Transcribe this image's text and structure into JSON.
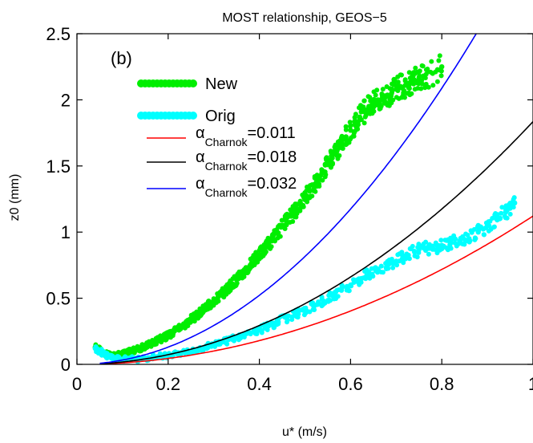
{
  "chart_data": {
    "type": "scatter",
    "title": "MOST relationship, GEOS−5",
    "panel_label": "(b)",
    "xlabel": "u* (m/s)",
    "ylabel": "z0 (mm)",
    "xlim": [
      0,
      1
    ],
    "ylim": [
      0,
      2.5
    ],
    "x_ticks": [
      0,
      0.2,
      0.4,
      0.6,
      0.8,
      1
    ],
    "x_tick_labels": [
      "0",
      "0.2",
      "0.4",
      "0.6",
      "0.8",
      "1"
    ],
    "y_ticks": [
      0,
      0.5,
      1,
      1.5,
      2,
      2.5
    ],
    "y_tick_labels": [
      "0",
      "0.5",
      "1",
      "1.5",
      "2",
      "2.5"
    ],
    "grid": false,
    "legend_position": "upper-left",
    "scatter_series": [
      {
        "name": "New",
        "color": "#00ee00",
        "x": [
          0.04,
          0.05,
          0.06,
          0.07,
          0.08,
          0.09,
          0.1,
          0.11,
          0.12,
          0.13,
          0.14,
          0.15,
          0.16,
          0.17,
          0.18,
          0.19,
          0.2,
          0.21,
          0.22,
          0.23,
          0.24,
          0.25,
          0.26,
          0.27,
          0.28,
          0.29,
          0.3,
          0.31,
          0.32,
          0.33,
          0.34,
          0.35,
          0.36,
          0.37,
          0.38,
          0.39,
          0.4,
          0.41,
          0.42,
          0.43,
          0.44,
          0.45,
          0.46,
          0.47,
          0.48,
          0.49,
          0.5,
          0.51,
          0.52,
          0.53,
          0.54,
          0.55,
          0.56,
          0.57,
          0.58,
          0.59,
          0.6,
          0.61,
          0.62,
          0.63,
          0.64,
          0.65,
          0.66,
          0.67,
          0.68,
          0.69,
          0.7,
          0.71,
          0.72,
          0.73,
          0.74,
          0.75,
          0.76,
          0.78,
          0.8
        ],
        "y": [
          0.13,
          0.11,
          0.08,
          0.07,
          0.06,
          0.07,
          0.08,
          0.09,
          0.1,
          0.11,
          0.12,
          0.14,
          0.15,
          0.17,
          0.19,
          0.2,
          0.22,
          0.24,
          0.27,
          0.29,
          0.31,
          0.34,
          0.36,
          0.39,
          0.42,
          0.45,
          0.48,
          0.51,
          0.54,
          0.57,
          0.61,
          0.64,
          0.68,
          0.71,
          0.75,
          0.79,
          0.83,
          0.87,
          0.91,
          0.95,
          0.99,
          1.04,
          1.08,
          1.12,
          1.17,
          1.22,
          1.26,
          1.31,
          1.36,
          1.41,
          1.46,
          1.51,
          1.56,
          1.61,
          1.67,
          1.72,
          1.77,
          1.82,
          1.87,
          1.91,
          1.95,
          1.98,
          2.0,
          2.02,
          2.03,
          2.05,
          2.08,
          2.1,
          2.11,
          2.13,
          2.15,
          2.17,
          2.18,
          2.2,
          2.25
        ]
      },
      {
        "name": "Orig",
        "color": "#00ffff",
        "x": [
          0.04,
          0.05,
          0.06,
          0.07,
          0.08,
          0.1,
          0.12,
          0.14,
          0.16,
          0.18,
          0.2,
          0.22,
          0.24,
          0.26,
          0.28,
          0.3,
          0.32,
          0.34,
          0.36,
          0.38,
          0.4,
          0.42,
          0.44,
          0.46,
          0.48,
          0.5,
          0.52,
          0.54,
          0.56,
          0.58,
          0.6,
          0.62,
          0.64,
          0.66,
          0.68,
          0.7,
          0.72,
          0.74,
          0.76,
          0.78,
          0.8,
          0.82,
          0.84,
          0.86,
          0.88,
          0.9,
          0.92,
          0.94,
          0.95,
          0.96
        ],
        "y": [
          0.12,
          0.1,
          0.08,
          0.06,
          0.05,
          0.04,
          0.04,
          0.04,
          0.05,
          0.06,
          0.07,
          0.08,
          0.1,
          0.11,
          0.13,
          0.15,
          0.17,
          0.19,
          0.21,
          0.24,
          0.26,
          0.29,
          0.32,
          0.35,
          0.38,
          0.41,
          0.44,
          0.48,
          0.52,
          0.56,
          0.6,
          0.64,
          0.68,
          0.72,
          0.75,
          0.78,
          0.82,
          0.85,
          0.88,
          0.87,
          0.9,
          0.92,
          0.93,
          0.95,
          1.0,
          1.05,
          1.1,
          1.15,
          1.18,
          1.22
        ]
      }
    ],
    "line_series": [
      {
        "name": "αCharnok=0.011",
        "alpha": 0.011,
        "color": "#ff0000"
      },
      {
        "name": "αCharnok=0.018",
        "alpha": 0.018,
        "color": "#000000"
      },
      {
        "name": "αCharnok=0.032",
        "alpha": 0.032,
        "color": "#0000ff"
      }
    ],
    "legend": [
      {
        "label": "New",
        "kind": "marker",
        "color": "#00ee00"
      },
      {
        "label": "Orig",
        "kind": "marker",
        "color": "#00ffff"
      },
      {
        "symbol": "α",
        "sub": "Charnok",
        "value": "=0.011",
        "kind": "line",
        "color": "#ff0000"
      },
      {
        "symbol": "α",
        "sub": "Charnok",
        "value": "=0.018",
        "kind": "line",
        "color": "#000000"
      },
      {
        "symbol": "α",
        "sub": "Charnok",
        "value": "=0.032",
        "kind": "line",
        "color": "#0000ff"
      }
    ]
  }
}
